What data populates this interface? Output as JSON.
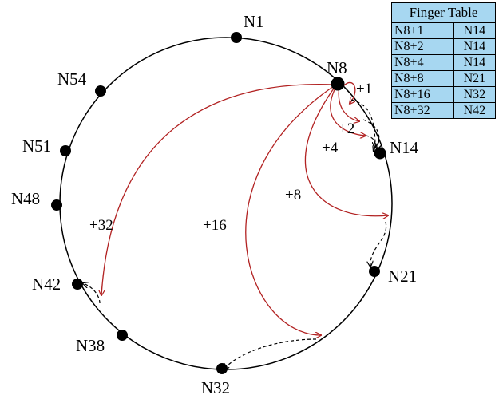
{
  "colors": {
    "finger": "#b22222",
    "dashed": "#000000",
    "ring": "#000000",
    "table_bg": "#a7d7f1"
  },
  "nodes": [
    {
      "label": "N1"
    },
    {
      "label": "N8"
    },
    {
      "label": "N14"
    },
    {
      "label": "N21"
    },
    {
      "label": "N32"
    },
    {
      "label": "N38"
    },
    {
      "label": "N42"
    },
    {
      "label": "N48"
    },
    {
      "label": "N51"
    },
    {
      "label": "N54"
    }
  ],
  "fingers": [
    {
      "label": "+1"
    },
    {
      "label": "+2"
    },
    {
      "label": "+4"
    },
    {
      "label": "+8"
    },
    {
      "label": "+16"
    },
    {
      "label": "+32"
    }
  ],
  "finger_table": {
    "title": "Finger Table",
    "rows": [
      {
        "start": "N8+1",
        "successor": "N14"
      },
      {
        "start": "N8+2",
        "successor": "N14"
      },
      {
        "start": "N8+4",
        "successor": "N14"
      },
      {
        "start": "N8+8",
        "successor": "N21"
      },
      {
        "start": "N8+16",
        "successor": "N32"
      },
      {
        "start": "N8+32",
        "successor": "N42"
      }
    ]
  }
}
